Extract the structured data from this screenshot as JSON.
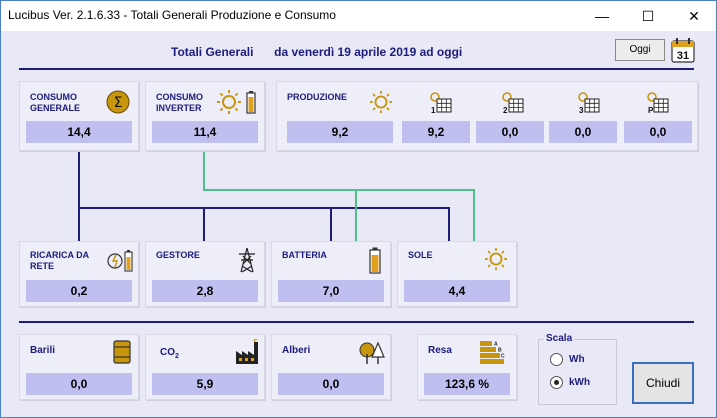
{
  "window": {
    "title": "Lucibus Ver. 2.1.6.33 -  Totali Generali Produzione e Consumo"
  },
  "header": {
    "title": "Totali Generali",
    "period": "da venerdì 19 aprile 2019 ad oggi",
    "today_label": "Oggi",
    "calendar_day": "31"
  },
  "panels": {
    "consumo_generale": {
      "label_line1": "CONSUMO",
      "label_line2": "GENERALE",
      "value": "14,4",
      "icon": "sigma-icon"
    },
    "consumo_inverter": {
      "label_line1": "CONSUMO",
      "label_line2": "INVERTER",
      "value": "11,4",
      "icon": "sun-battery-icon"
    },
    "produzione": {
      "label": "PRODUZIONE",
      "value": "9,2",
      "icon": "sun-icon"
    },
    "produzione_1": {
      "index": "1",
      "value": "9,2"
    },
    "produzione_2": {
      "index": "2",
      "value": "0,0"
    },
    "produzione_3": {
      "index": "3",
      "value": "0,0"
    },
    "produzione_p": {
      "index": "P",
      "value": "0,0"
    },
    "ricarica_da_rete": {
      "label_line1": "RICARICA DA",
      "label_line2": "RETE",
      "value": "0,2"
    },
    "gestore": {
      "label": "GESTORE",
      "value": "2,8"
    },
    "batteria": {
      "label": "BATTERIA",
      "value": "7,0"
    },
    "sole": {
      "label": "SOLE",
      "value": "4,4"
    },
    "barili": {
      "label": "Barili",
      "value": "0,0"
    },
    "co2": {
      "label": "CO",
      "label_sub": "2",
      "value": "5,9"
    },
    "alberi": {
      "label": "Alberi",
      "value": "0,0"
    },
    "resa": {
      "label": "Resa",
      "value": "123,6 %"
    }
  },
  "scala": {
    "title": "Scala",
    "options": [
      "Wh",
      "kWh"
    ],
    "selected": "kWh"
  },
  "close_label": "Chiudi",
  "colors": {
    "navy": "#1c1c7c",
    "green": "#4dbf8a",
    "value_bg": "#c0c0f0",
    "icon_gold": "#c8960c"
  }
}
